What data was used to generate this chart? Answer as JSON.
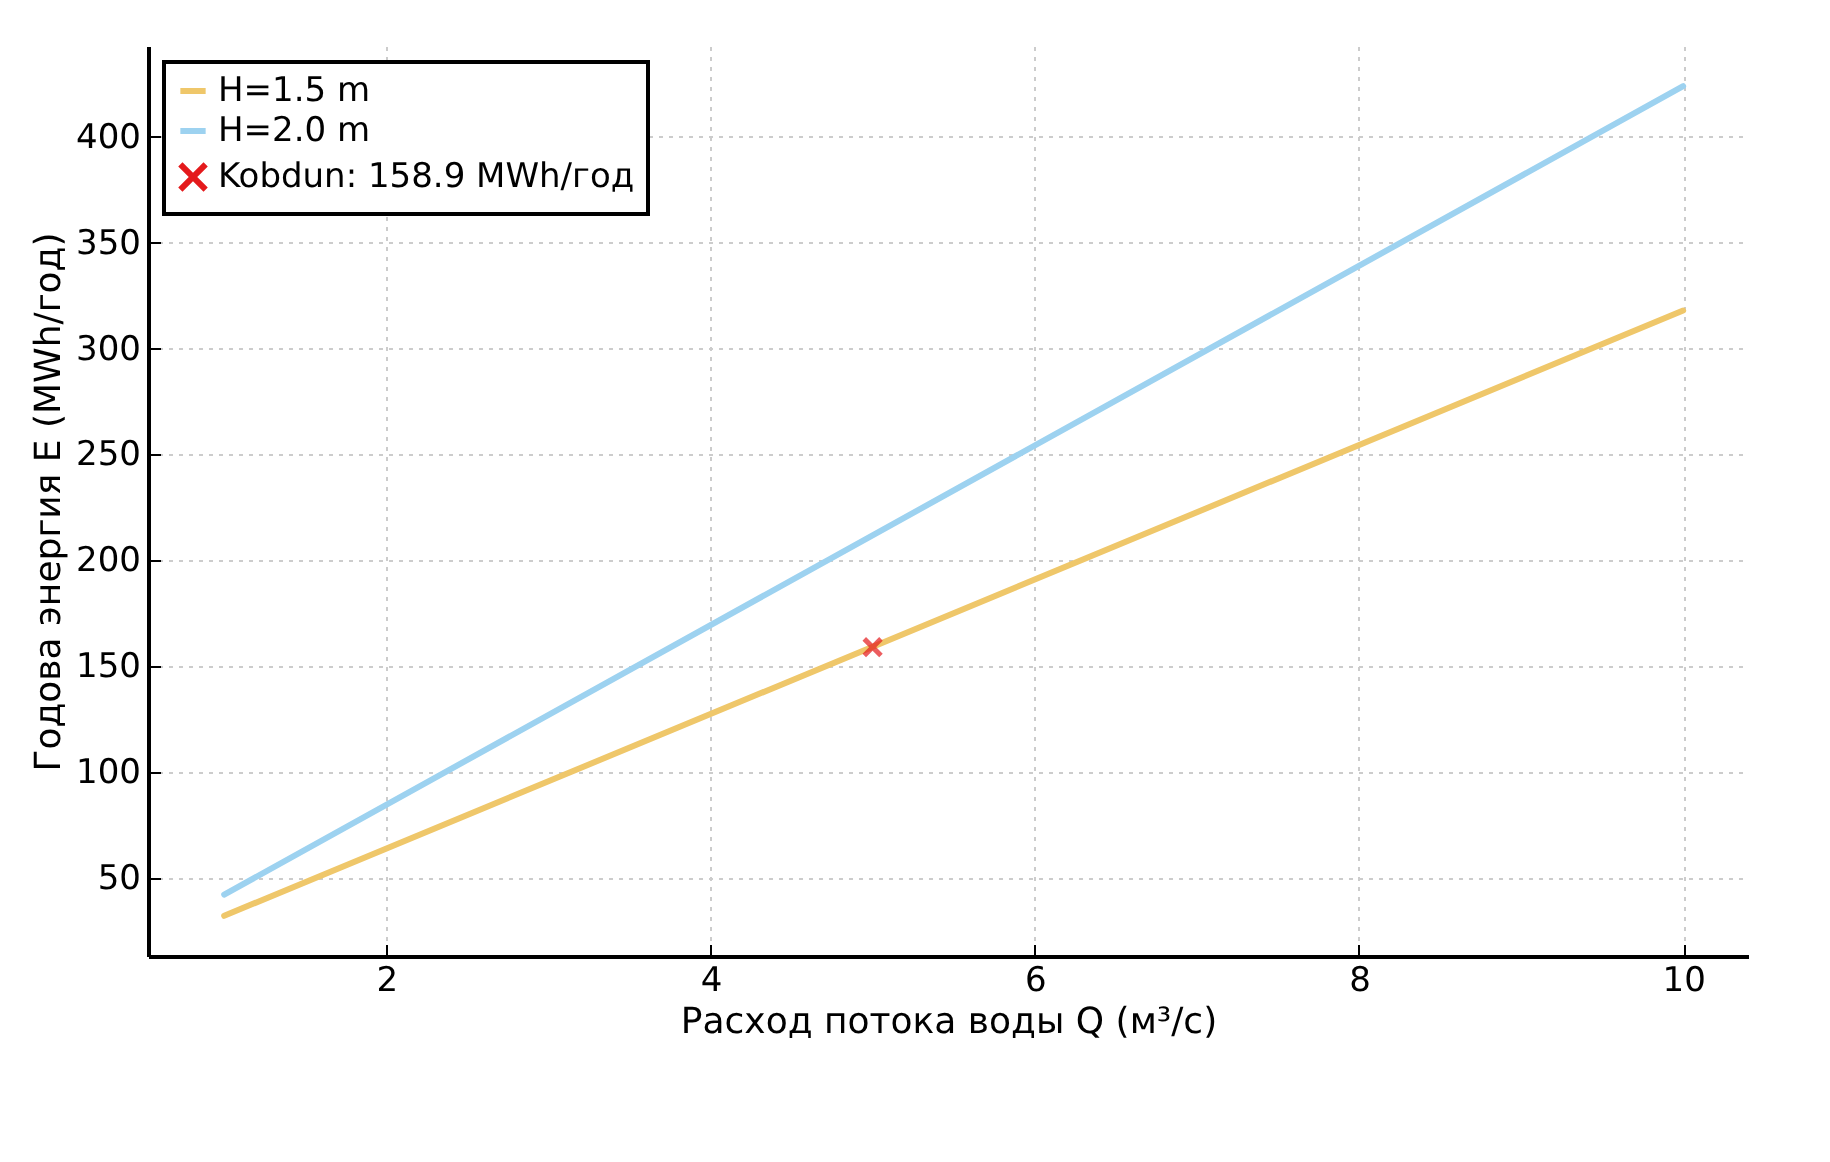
{
  "chart_data": {
    "type": "line",
    "xlabel": "Расход потока воды Q (м³/с)",
    "ylabel": "Годова энергия E (MWh/год)",
    "xlim": [
      0.53,
      10.4
    ],
    "xticks": [
      2,
      4,
      6,
      8,
      10
    ],
    "ylim": [
      13,
      443
    ],
    "yticks": [
      50,
      100,
      150,
      200,
      250,
      300,
      350,
      400
    ],
    "grid": true,
    "legend": "top left",
    "line_style": "solid",
    "series": [
      {
        "name": "H=1.5 m",
        "color": "#efc76a",
        "x": [
          1,
          10
        ],
        "values": [
          32,
          318
        ]
      },
      {
        "name": "H=2.0 m",
        "color": "#9dd2f0",
        "x": [
          1,
          10
        ],
        "values": [
          42,
          424
        ]
      },
      {
        "name": "Kobdun: 158.9 MWh/год",
        "type": "scatter",
        "marker": "cross",
        "color": "#e41a1c",
        "x": [
          5
        ],
        "values": [
          158.9
        ]
      }
    ]
  }
}
